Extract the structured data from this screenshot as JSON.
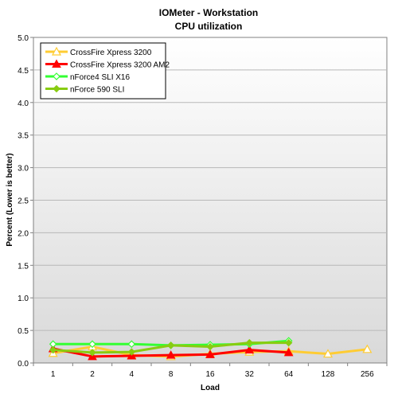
{
  "chart_data": {
    "type": "line",
    "title": "IOMeter - Workstation",
    "subtitle": "CPU utilization",
    "xlabel": "Load",
    "ylabel": "Percent (Lower is better)",
    "categories": [
      "1",
      "2",
      "4",
      "8",
      "16",
      "32",
      "64",
      "128",
      "256"
    ],
    "ylim": [
      0,
      5
    ],
    "yticks": [
      "0.0",
      "0.5",
      "1.0",
      "1.5",
      "2.0",
      "2.5",
      "3.0",
      "3.5",
      "4.0",
      "4.5",
      "5.0"
    ],
    "grid": true,
    "legend_position": "top-left",
    "series": [
      {
        "name": "CrossFire Xpress 3200",
        "color": "#ffcc33",
        "marker": "triangle-open",
        "values": [
          0.15,
          0.25,
          0.12,
          0.1,
          0.14,
          0.17,
          0.18,
          0.14,
          0.21
        ]
      },
      {
        "name": "CrossFire Xpress 3200 AM2",
        "color": "#ff0000",
        "marker": "triangle",
        "values": [
          0.22,
          0.1,
          0.11,
          0.12,
          0.13,
          0.2,
          0.16,
          null,
          null
        ]
      },
      {
        "name": "nForce4 SLI X16",
        "color": "#33ff33",
        "marker": "diamond-open",
        "values": [
          0.29,
          0.29,
          0.29,
          0.27,
          0.28,
          0.29,
          0.34,
          null,
          null
        ]
      },
      {
        "name": "nForce 590 SLI",
        "color": "#88cc11",
        "marker": "diamond",
        "values": [
          0.2,
          0.16,
          0.17,
          0.27,
          0.25,
          0.31,
          0.31,
          null,
          null
        ]
      }
    ]
  }
}
